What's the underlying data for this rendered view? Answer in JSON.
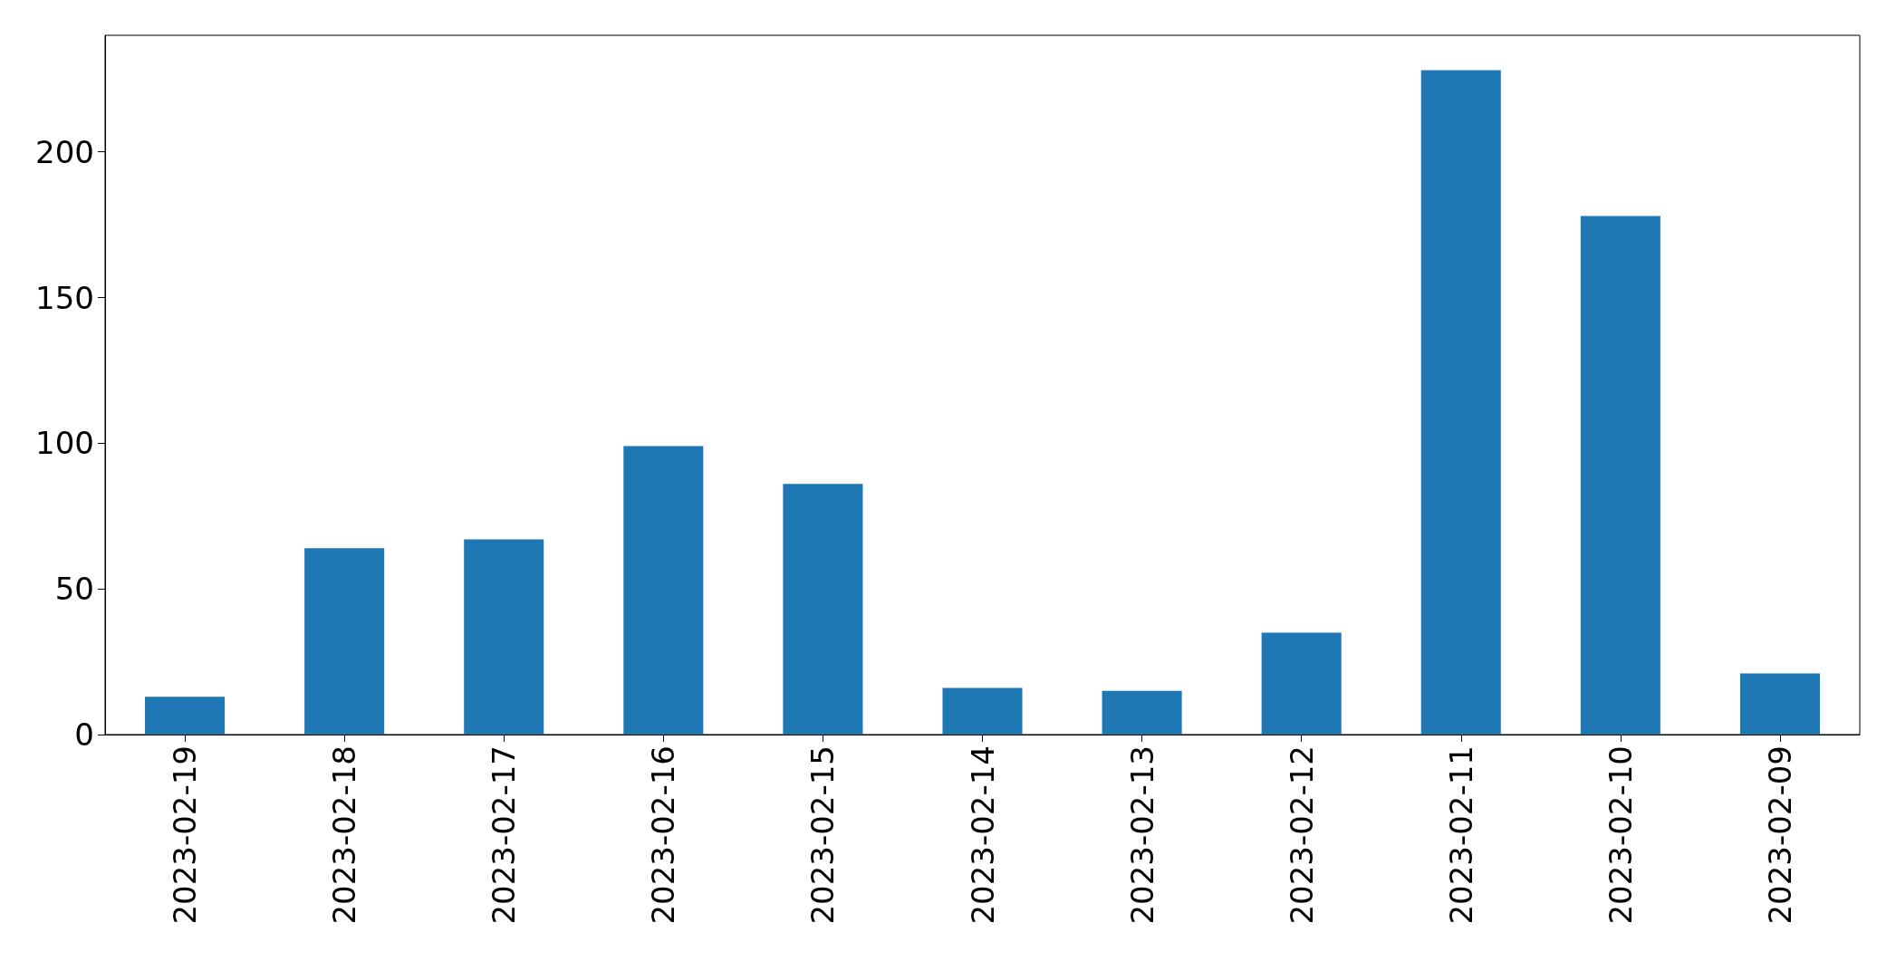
{
  "chart_data": {
    "type": "bar",
    "categories": [
      "2023-02-19",
      "2023-02-18",
      "2023-02-17",
      "2023-02-16",
      "2023-02-15",
      "2023-02-14",
      "2023-02-13",
      "2023-02-12",
      "2023-02-11",
      "2023-02-10",
      "2023-02-09"
    ],
    "values": [
      13,
      64,
      67,
      99,
      86,
      16,
      15,
      35,
      228,
      178,
      21
    ],
    "color": "#1f77b4",
    "ylim": [
      0,
      240
    ],
    "yticks": [
      0,
      50,
      100,
      150,
      200
    ],
    "grid": false
  }
}
